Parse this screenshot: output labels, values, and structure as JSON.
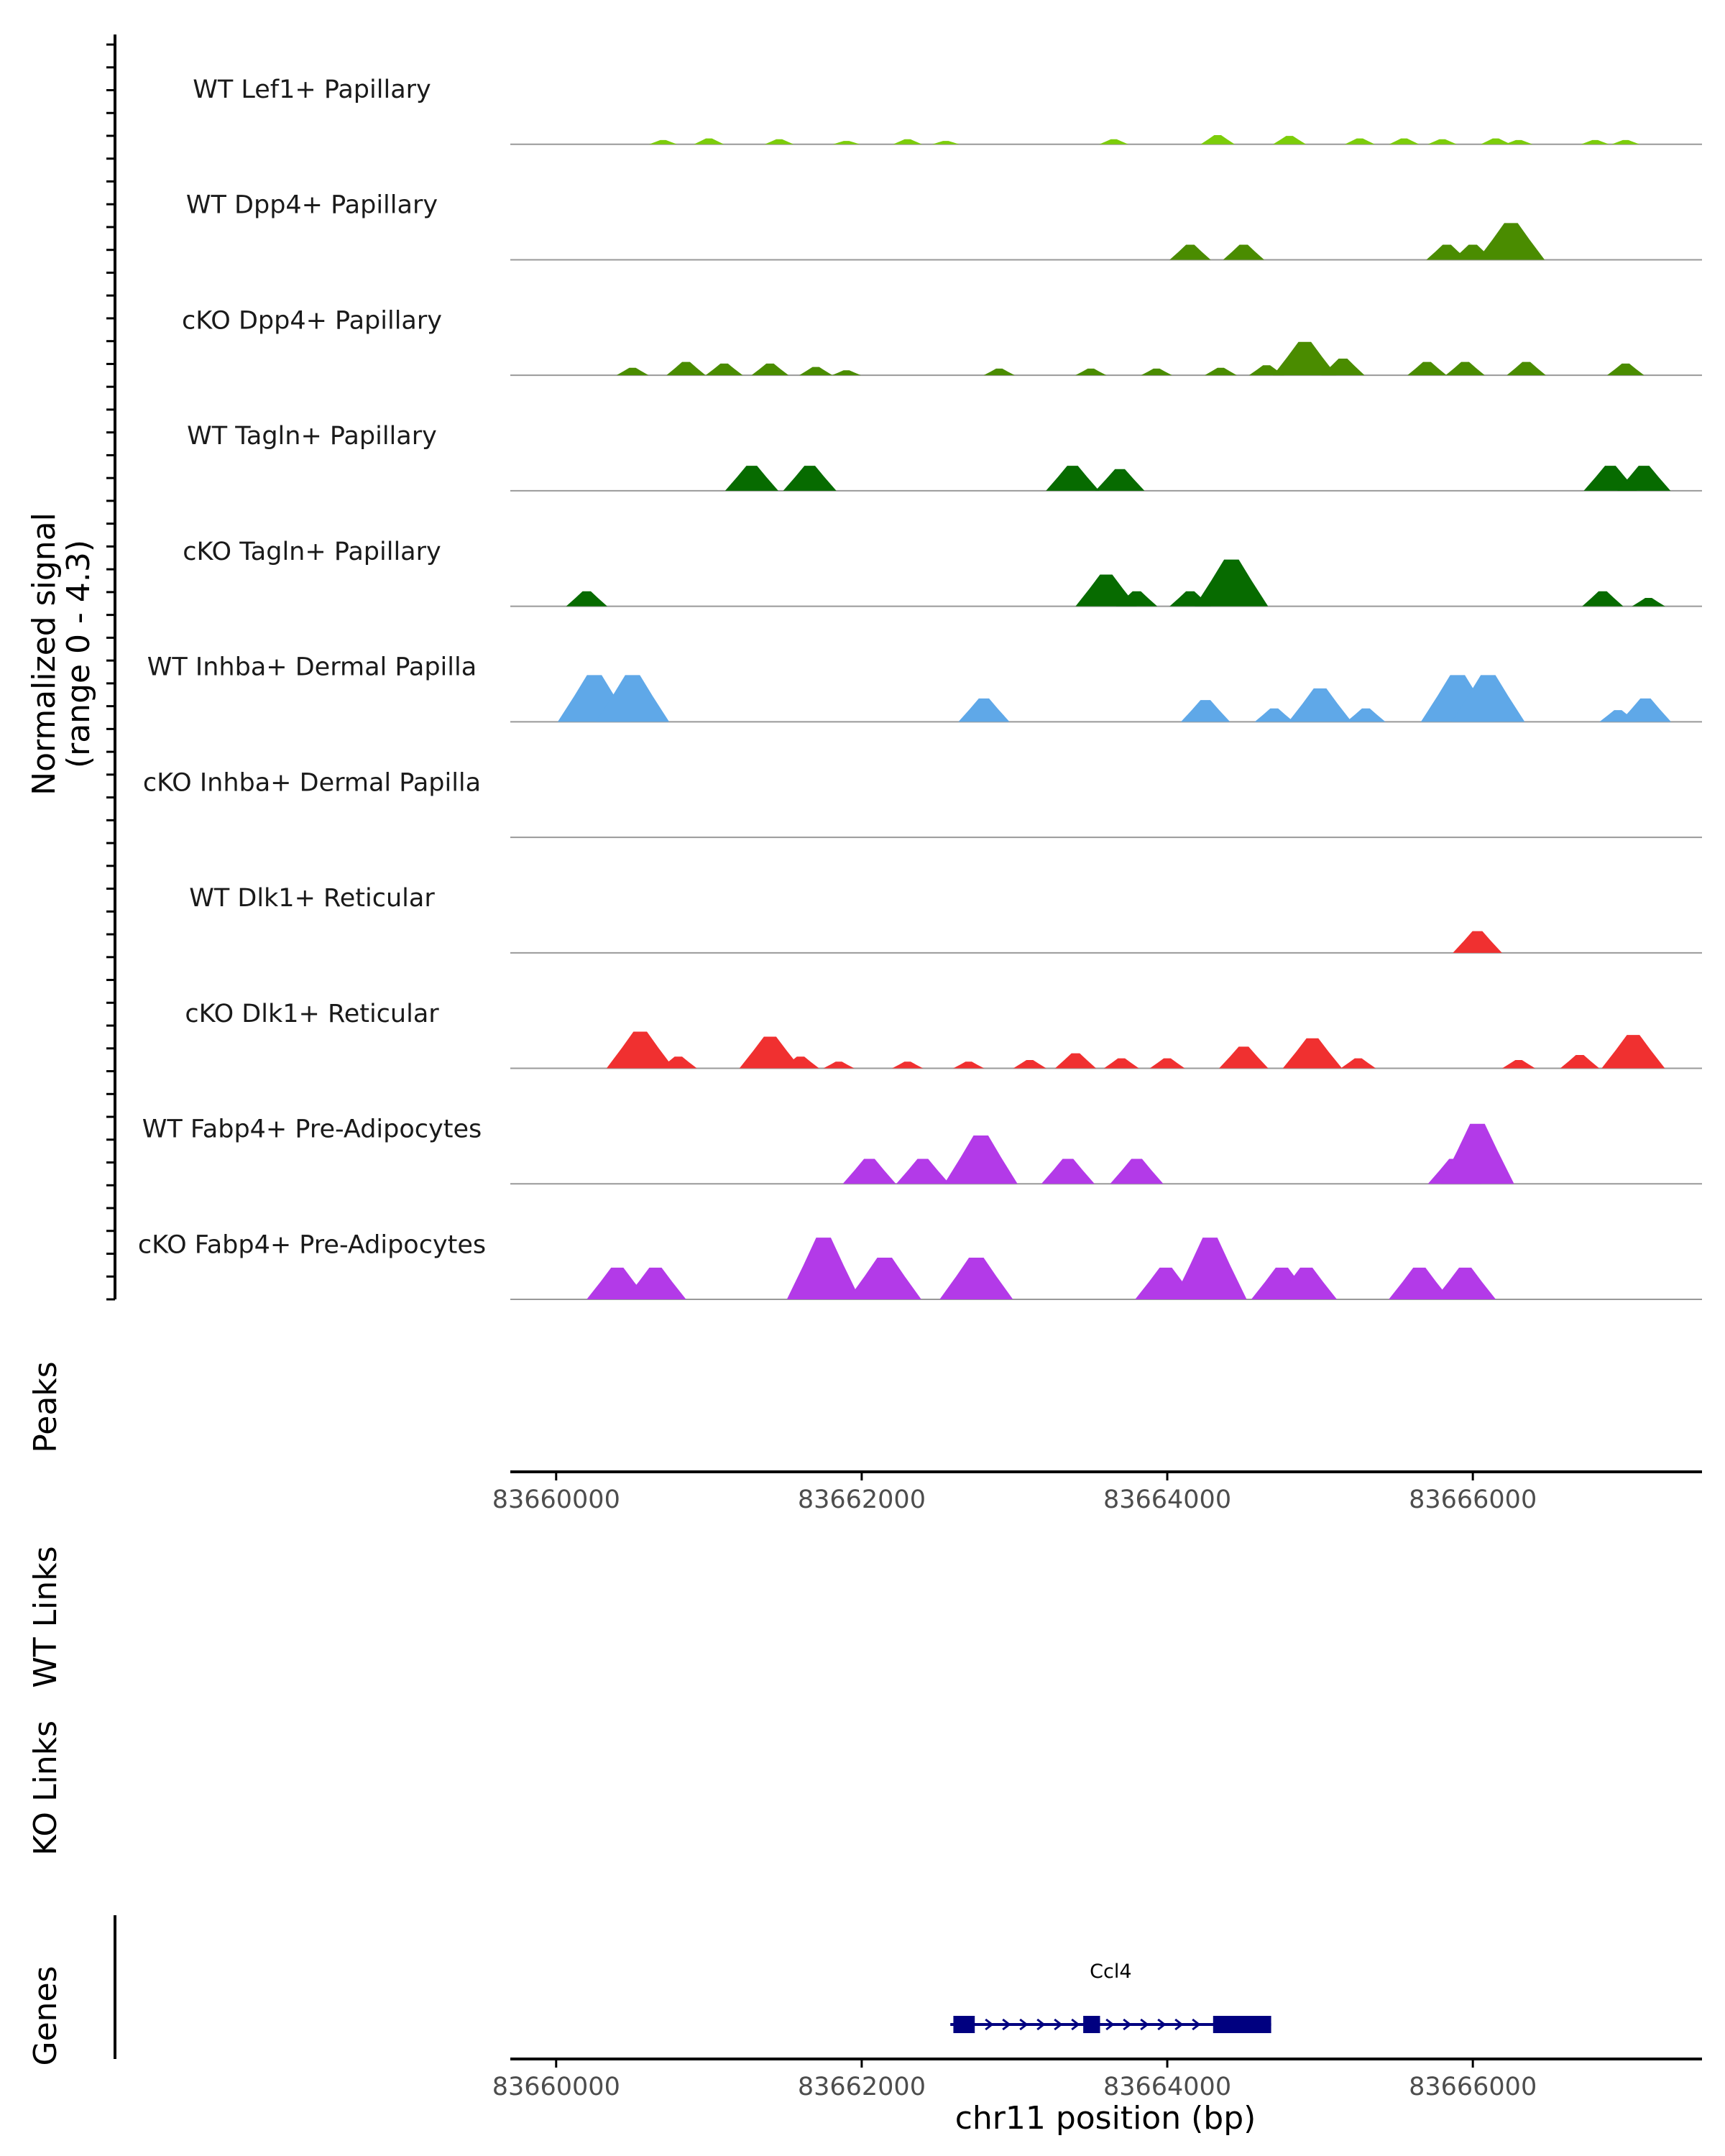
{
  "chart_data": {
    "type": "area",
    "title": "",
    "signal_panel": {
      "ylabel_line1": "Normalized signal",
      "ylabel_line2": "(range 0 - 4.3)",
      "ylim": [
        0,
        4.3
      ],
      "x_range": [
        83659700,
        83667500
      ]
    },
    "tracks": [
      {
        "name": "WT Lef1+ Papillary",
        "color": "#7ccd0a",
        "peaks": [
          [
            83660700,
            0.25
          ],
          [
            83661000,
            0.35
          ],
          [
            83661460,
            0.3
          ],
          [
            83661900,
            0.2
          ],
          [
            83662300,
            0.3
          ],
          [
            83662550,
            0.2
          ],
          [
            83663650,
            0.3
          ],
          [
            83664330,
            0.55
          ],
          [
            83664800,
            0.5
          ],
          [
            83665260,
            0.35
          ],
          [
            83665550,
            0.35
          ],
          [
            83665800,
            0.3
          ],
          [
            83666150,
            0.35
          ],
          [
            83666300,
            0.25
          ],
          [
            83666800,
            0.25
          ],
          [
            83667000,
            0.25
          ]
        ]
      },
      {
        "name": "WT Dpp4+ Papillary",
        "color": "#4a8c00",
        "peaks": [
          [
            83664150,
            0.9
          ],
          [
            83664500,
            0.9
          ],
          [
            83665830,
            0.9
          ],
          [
            83666000,
            0.9
          ],
          [
            83666250,
            2.2
          ]
        ]
      },
      {
        "name": "cKO Dpp4+ Papillary",
        "color": "#4a8c00",
        "peaks": [
          [
            83660500,
            0.45
          ],
          [
            83660850,
            0.8
          ],
          [
            83661100,
            0.7
          ],
          [
            83661400,
            0.7
          ],
          [
            83661700,
            0.5
          ],
          [
            83661900,
            0.3
          ],
          [
            83662900,
            0.4
          ],
          [
            83663500,
            0.4
          ],
          [
            83663930,
            0.4
          ],
          [
            83664350,
            0.45
          ],
          [
            83664650,
            0.6
          ],
          [
            83664900,
            2.0
          ],
          [
            83665150,
            1.0
          ],
          [
            83665700,
            0.8
          ],
          [
            83665950,
            0.8
          ],
          [
            83666350,
            0.8
          ],
          [
            83667000,
            0.7
          ]
        ]
      },
      {
        "name": "WT Tagln+ Papillary",
        "color": "#076b00",
        "peaks": [
          [
            83661280,
            1.5
          ],
          [
            83661660,
            1.5
          ],
          [
            83663380,
            1.5
          ],
          [
            83663690,
            1.3
          ],
          [
            83666900,
            1.5
          ],
          [
            83667120,
            1.5
          ]
        ]
      },
      {
        "name": "cKO Tagln+ Papillary",
        "color": "#076b00",
        "peaks": [
          [
            83660200,
            0.9
          ],
          [
            83663600,
            1.9
          ],
          [
            83663800,
            0.9
          ],
          [
            83664150,
            0.9
          ],
          [
            83664420,
            2.8
          ],
          [
            83666850,
            0.9
          ],
          [
            83667150,
            0.5
          ]
        ]
      },
      {
        "name": "WT Inhba+ Dermal Papilla",
        "color": "#5fa8e8",
        "peaks": [
          [
            83660250,
            2.8
          ],
          [
            83660500,
            2.8
          ],
          [
            83662800,
            1.4
          ],
          [
            83664250,
            1.3
          ],
          [
            83664700,
            0.8
          ],
          [
            83665000,
            2.0
          ],
          [
            83665300,
            0.8
          ],
          [
            83665900,
            2.8
          ],
          [
            83666100,
            2.8
          ],
          [
            83666950,
            0.7
          ],
          [
            83667130,
            1.4
          ]
        ]
      },
      {
        "name": "cKO Inhba+ Dermal Papilla",
        "color": "#5fa8e8",
        "peaks": []
      },
      {
        "name": "WT Dlk1+ Reticular",
        "color": "#f03030",
        "peaks": [
          [
            83666030,
            1.3
          ]
        ]
      },
      {
        "name": "cKO Dlk1+ Reticular",
        "color": "#f03030",
        "peaks": [
          [
            83660550,
            2.2
          ],
          [
            83660800,
            0.7
          ],
          [
            83661400,
            1.9
          ],
          [
            83661600,
            0.7
          ],
          [
            83661850,
            0.4
          ],
          [
            83662300,
            0.4
          ],
          [
            83662700,
            0.4
          ],
          [
            83663100,
            0.5
          ],
          [
            83663400,
            0.9
          ],
          [
            83663700,
            0.6
          ],
          [
            83664000,
            0.6
          ],
          [
            83664500,
            1.3
          ],
          [
            83664950,
            1.8
          ],
          [
            83665250,
            0.6
          ],
          [
            83666300,
            0.5
          ],
          [
            83666700,
            0.8
          ],
          [
            83667050,
            2.0
          ]
        ]
      },
      {
        "name": "WT Fabp4+ Pre-Adipocytes",
        "color": "#b33ae8",
        "peaks": [
          [
            83662050,
            1.5
          ],
          [
            83662400,
            1.5
          ],
          [
            83662780,
            2.9
          ],
          [
            83663350,
            1.5
          ],
          [
            83663800,
            1.5
          ],
          [
            83665880,
            1.5
          ],
          [
            83666030,
            3.6
          ]
        ]
      },
      {
        "name": "cKO Fabp4+ Pre-Adipocytes",
        "color": "#b33ae8",
        "peaks": [
          [
            83660400,
            1.9
          ],
          [
            83660650,
            1.9
          ],
          [
            83661750,
            3.7
          ],
          [
            83662150,
            2.5
          ],
          [
            83662750,
            2.5
          ],
          [
            83663990,
            1.9
          ],
          [
            83664280,
            3.7
          ],
          [
            83664750,
            1.9
          ],
          [
            83664910,
            1.9
          ],
          [
            83665650,
            1.9
          ],
          [
            83665950,
            1.9
          ]
        ]
      }
    ],
    "peaks_track": {
      "label": "Peaks",
      "intervals": []
    },
    "wt_links_track": {
      "label": "WT Links"
    },
    "ko_links_track": {
      "label": "KO Links"
    },
    "genes_track": {
      "label": "Genes",
      "genes": [
        {
          "name": "Ccl4",
          "start": 83662580,
          "end": 83664680,
          "strand": "+",
          "exons": [
            [
              83662600,
              83662740
            ],
            [
              83663450,
              83663560
            ],
            [
              83664300,
              83664680
            ]
          ]
        }
      ]
    },
    "x_ticks": [
      {
        "value": 83660000,
        "label": "83660000"
      },
      {
        "value": 83662000,
        "label": "83662000"
      },
      {
        "value": 83664000,
        "label": "83664000"
      },
      {
        "value": 83666000,
        "label": "83666000"
      }
    ],
    "xlabel": "chr11 position (bp)",
    "colors": {
      "gene": "#000080",
      "baseline": "#999999",
      "axis": "#000000",
      "tick_label": "#4d4d4d"
    }
  }
}
